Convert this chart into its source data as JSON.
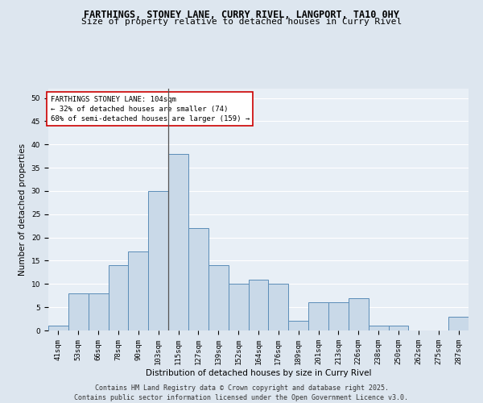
{
  "title_line1": "FARTHINGS, STONEY LANE, CURRY RIVEL, LANGPORT, TA10 0HY",
  "title_line2": "Size of property relative to detached houses in Curry Rivel",
  "xlabel": "Distribution of detached houses by size in Curry Rivel",
  "ylabel": "Number of detached properties",
  "categories": [
    "41sqm",
    "53sqm",
    "66sqm",
    "78sqm",
    "90sqm",
    "103sqm",
    "115sqm",
    "127sqm",
    "139sqm",
    "152sqm",
    "164sqm",
    "176sqm",
    "189sqm",
    "201sqm",
    "213sqm",
    "226sqm",
    "238sqm",
    "250sqm",
    "262sqm",
    "275sqm",
    "287sqm"
  ],
  "values": [
    1,
    8,
    8,
    14,
    17,
    30,
    38,
    22,
    14,
    10,
    11,
    10,
    2,
    6,
    6,
    7,
    1,
    1,
    0,
    0,
    3
  ],
  "bar_color": "#c9d9e8",
  "bar_edge_color": "#5b8db8",
  "vline_index": 6,
  "annotation_box_text": "FARTHINGS STONEY LANE: 104sqm\n← 32% of detached houses are smaller (74)\n68% of semi-detached houses are larger (159) →",
  "annotation_box_color": "white",
  "annotation_box_edge_color": "#cc0000",
  "ylim": [
    0,
    52
  ],
  "yticks": [
    0,
    5,
    10,
    15,
    20,
    25,
    30,
    35,
    40,
    45,
    50
  ],
  "footer_line1": "Contains HM Land Registry data © Crown copyright and database right 2025.",
  "footer_line2": "Contains public sector information licensed under the Open Government Licence v3.0.",
  "bg_color": "#dde6ef",
  "plot_bg_color": "#e8eff6",
  "grid_color": "white",
  "title_fontsize": 8.5,
  "subtitle_fontsize": 8,
  "axis_label_fontsize": 7.5,
  "tick_fontsize": 6.5,
  "annotation_fontsize": 6.5,
  "footer_fontsize": 6
}
